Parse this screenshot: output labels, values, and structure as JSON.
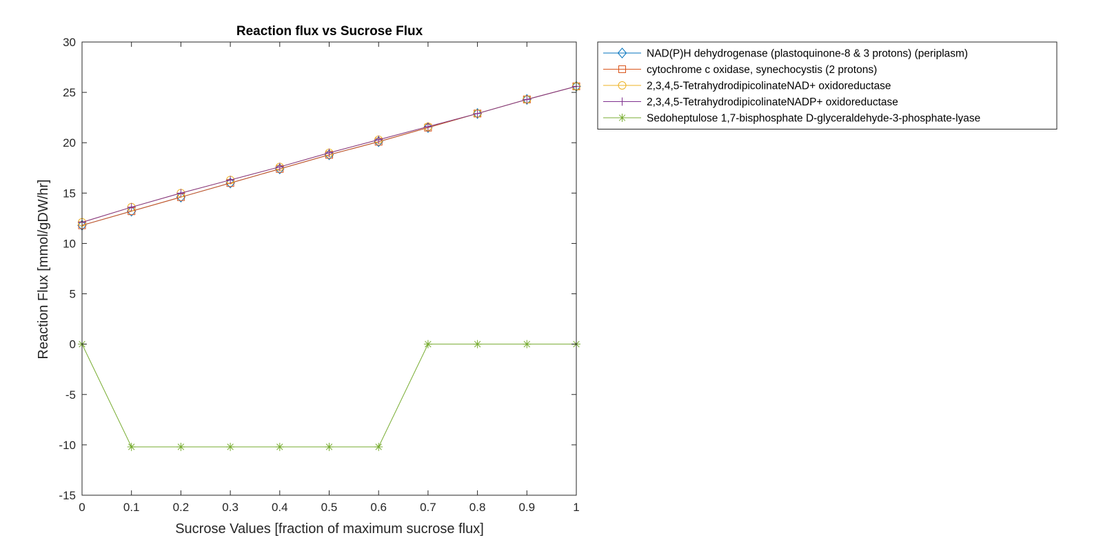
{
  "chart_data": {
    "type": "line",
    "title": "Reaction flux vs Sucrose Flux",
    "xlabel": "Sucrose Values [fraction of maximum sucrose flux]",
    "ylabel": "Reaction Flux [mmol/gDW/hr]",
    "xlim": [
      0,
      1
    ],
    "ylim": [
      -15,
      30
    ],
    "xticks": [
      0,
      0.1,
      0.2,
      0.3,
      0.4,
      0.5,
      0.6,
      0.7,
      0.8,
      0.9,
      1
    ],
    "xtick_labels": [
      "0",
      "0.1",
      "0.2",
      "0.3",
      "0.4",
      "0.5",
      "0.6",
      "0.7",
      "0.8",
      "0.9",
      "1"
    ],
    "yticks": [
      -15,
      -10,
      -5,
      0,
      5,
      10,
      15,
      20,
      25,
      30
    ],
    "ytick_labels": [
      "-15",
      "-10",
      "-5",
      "0",
      "5",
      "10",
      "15",
      "20",
      "25",
      "30"
    ],
    "grid": false,
    "legend_position": "outside-top-right",
    "x": [
      0,
      0.1,
      0.2,
      0.3,
      0.4,
      0.5,
      0.6,
      0.7,
      0.8,
      0.9,
      1
    ],
    "series": [
      {
        "name": "NAD(P)H dehydrogenase (plastoquinone-8 & 3 protons) (periplasm)",
        "color": "#0072BD",
        "marker": "diamond",
        "values": [
          11.8,
          13.2,
          14.6,
          16.0,
          17.4,
          18.8,
          20.1,
          21.5,
          22.9,
          24.3,
          25.6
        ]
      },
      {
        "name": "cytochrome c oxidase, synechocystis (2 protons)",
        "color": "#D95319",
        "marker": "square",
        "values": [
          11.8,
          13.2,
          14.6,
          16.0,
          17.4,
          18.8,
          20.1,
          21.5,
          22.9,
          24.3,
          25.6
        ]
      },
      {
        "name": "2,3,4,5-TetrahydrodipicolinateNAD+ oxidoreductase",
        "color": "#EDB120",
        "marker": "circle",
        "values": [
          12.1,
          13.6,
          15.0,
          16.3,
          17.6,
          19.0,
          20.3,
          21.6,
          22.9,
          24.3,
          25.6
        ]
      },
      {
        "name": "2,3,4,5-TetrahydrodipicolinateNADP+ oxidoreductase",
        "color": "#7E2F8E",
        "marker": "plus",
        "values": [
          12.1,
          13.6,
          15.0,
          16.3,
          17.6,
          19.0,
          20.3,
          21.6,
          22.9,
          24.3,
          25.6
        ]
      },
      {
        "name": "Sedoheptulose 1,7-bisphosphate D-glyceraldehyde-3-phosphate-lyase",
        "color": "#77AC30",
        "marker": "asterisk",
        "values": [
          0,
          -10.2,
          -10.2,
          -10.2,
          -10.2,
          -10.2,
          -10.2,
          0,
          0,
          0,
          0
        ]
      }
    ]
  }
}
